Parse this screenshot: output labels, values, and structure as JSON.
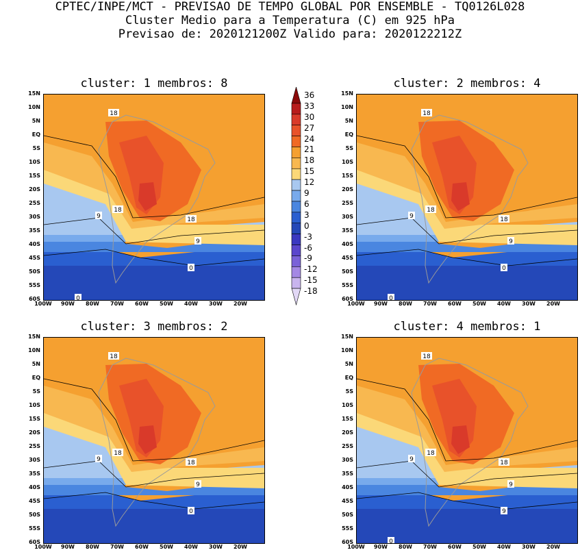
{
  "header": {
    "line1": "CPTEC/INPE/MCT - PREVISAO DE TEMPO GLOBAL POR ENSEMBLE - TQ0126L028",
    "line2": "Cluster Medio para a Temperatura (C) em 925 hPa",
    "line3": "Previsao de: 2020121200Z   Valido para: 2020122212Z"
  },
  "panels": [
    {
      "title": "cluster: 1  membros: 8",
      "contour_labels": [
        "18",
        "18",
        "18",
        "9",
        "9",
        "0",
        "0"
      ]
    },
    {
      "title": "cluster: 2  membros: 4",
      "contour_labels": [
        "18",
        "18",
        "18",
        "9",
        "9",
        "0",
        "0"
      ]
    },
    {
      "title": "cluster: 3  membros: 2",
      "contour_labels": [
        "18",
        "18",
        "18",
        "9",
        "9",
        "0"
      ]
    },
    {
      "title": "cluster: 4  membros: 1",
      "contour_labels": [
        "18",
        "18",
        "18",
        "9",
        "9",
        "9",
        "0"
      ]
    }
  ],
  "lat_labels": [
    "15N",
    "10N",
    "5N",
    "EQ",
    "5S",
    "10S",
    "15S",
    "20S",
    "25S",
    "30S",
    "35S",
    "40S",
    "45S",
    "50S",
    "55S",
    "60S"
  ],
  "lon_labels": [
    "100W",
    "90W",
    "80W",
    "70W",
    "60W",
    "50W",
    "40W",
    "30W",
    "20W"
  ],
  "colorbar": {
    "labels": [
      "36",
      "33",
      "30",
      "27",
      "24",
      "21",
      "18",
      "15",
      "12",
      "9",
      "6",
      "3",
      "0",
      "-3",
      "-6",
      "-9",
      "-12",
      "-15",
      "-18"
    ],
    "colors": [
      "#8b0a0a",
      "#b81c1c",
      "#d93a2a",
      "#e8522a",
      "#f06a24",
      "#f5a030",
      "#f8b850",
      "#fbd878",
      "#a8c8f0",
      "#78aaec",
      "#4a86e0",
      "#2a5fd0",
      "#2448b8",
      "#3a38c0",
      "#5a46cc",
      "#7a62d8",
      "#a488e4",
      "#c8b4ee",
      "#e2d8f6"
    ]
  }
}
